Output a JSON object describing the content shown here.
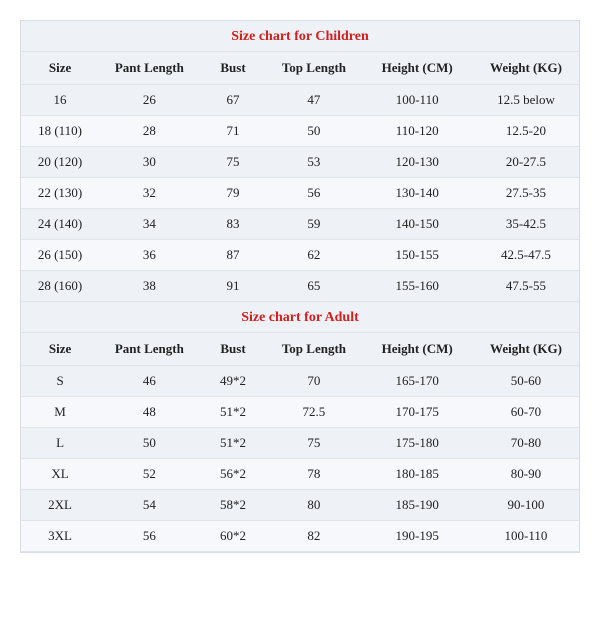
{
  "tables": [
    {
      "title": "Size chart for Children",
      "columns": [
        "Size",
        "Pant Length",
        "Bust",
        "Top Length",
        "Height (CM)",
        "Weight (KG)"
      ],
      "rows": [
        [
          "16",
          "26",
          "67",
          "47",
          "100-110",
          "12.5 below"
        ],
        [
          "18 (110)",
          "28",
          "71",
          "50",
          "110-120",
          "12.5-20"
        ],
        [
          "20 (120)",
          "30",
          "75",
          "53",
          "120-130",
          "20-27.5"
        ],
        [
          "22 (130)",
          "32",
          "79",
          "56",
          "130-140",
          "27.5-35"
        ],
        [
          "24 (140)",
          "34",
          "83",
          "59",
          "140-150",
          "35-42.5"
        ],
        [
          "26 (150)",
          "36",
          "87",
          "62",
          "150-155",
          "42.5-47.5"
        ],
        [
          "28 (160)",
          "38",
          "91",
          "65",
          "155-160",
          "47.5-55"
        ]
      ]
    },
    {
      "title": "Size chart for Adult",
      "columns": [
        "Size",
        "Pant Length",
        "Bust",
        "Top Length",
        "Height (CM)",
        "Weight (KG)"
      ],
      "rows": [
        [
          "S",
          "46",
          "49*2",
          "70",
          "165-170",
          "50-60"
        ],
        [
          "M",
          "48",
          "51*2",
          "72.5",
          "170-175",
          "60-70"
        ],
        [
          "L",
          "50",
          "51*2",
          "75",
          "175-180",
          "70-80"
        ],
        [
          "XL",
          "52",
          "56*2",
          "78",
          "180-185",
          "80-90"
        ],
        [
          "2XL",
          "54",
          "58*2",
          "80",
          "185-190",
          "90-100"
        ],
        [
          "3XL",
          "56",
          "60*2",
          "82",
          "190-195",
          "100-110"
        ]
      ]
    }
  ],
  "style": {
    "title_color": "#d2201f",
    "header_bg": "#eef1f6",
    "row_bg": "#eef1f6",
    "row_alt_bg": "#f6f8fb",
    "border_color": "#dfe3ea",
    "text_color": "#222222",
    "font_family": "Times New Roman",
    "title_fontsize_pt": 11,
    "header_fontsize_pt": 10,
    "cell_fontsize_pt": 10
  }
}
